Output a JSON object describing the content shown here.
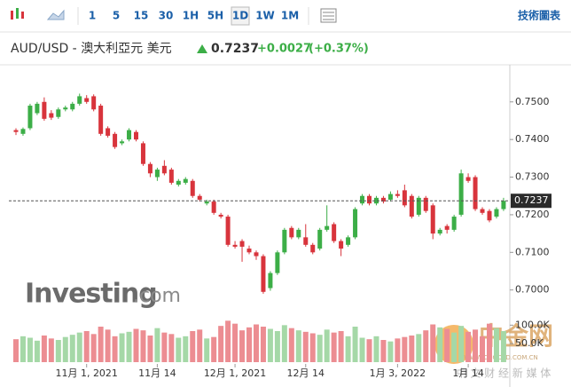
{
  "toolbar": {
    "timeframes": [
      "1",
      "5",
      "15",
      "30",
      "1H",
      "5H",
      "1D",
      "1W",
      "1M"
    ],
    "active": "1D",
    "link": "技術圖表"
  },
  "header": {
    "pair": "AUD/USD - 澳大利亞元 美元",
    "change": "+0.0027",
    "change_pct": "(+0.37%)"
  },
  "watermark": {
    "brand": "Investing",
    "suffix": ".com",
    "site": "中金网",
    "site_url": "WWW.CNGOLD.COM.CN",
    "site_slogan": "中 文 财 经 新 媒 体"
  },
  "chart_data": {
    "type": "candlestick",
    "categories": [
      null,
      null,
      null,
      null,
      null,
      null,
      null,
      null,
      null,
      null,
      "11月 1, 2021",
      null,
      null,
      null,
      null,
      null,
      null,
      null,
      null,
      null,
      "11月 14",
      null,
      null,
      null,
      null,
      null,
      null,
      null,
      null,
      null,
      null,
      "12月 1, 2021",
      null,
      null,
      null,
      null,
      null,
      null,
      null,
      null,
      null,
      "12月 14",
      null,
      null,
      null,
      null,
      null,
      null,
      null,
      null,
      null,
      null,
      null,
      null,
      "1月 3, 2022",
      null,
      null,
      null,
      null,
      null,
      null,
      null,
      null,
      null,
      "1月 14",
      null,
      null,
      null,
      null,
      null
    ],
    "candles": [
      [
        0.7425,
        0.743,
        0.7412,
        0.742
      ],
      [
        0.7415,
        0.7432,
        0.741,
        0.7428
      ],
      [
        0.743,
        0.7495,
        0.7425,
        0.749
      ],
      [
        0.747,
        0.75,
        0.7465,
        0.7495
      ],
      [
        0.75,
        0.7512,
        0.745,
        0.7455
      ],
      [
        0.747,
        0.7478,
        0.7452,
        0.7458
      ],
      [
        0.746,
        0.7485,
        0.7455,
        0.748
      ],
      [
        0.748,
        0.749,
        0.7475,
        0.7485
      ],
      [
        0.748,
        0.75,
        0.7475,
        0.7495
      ],
      [
        0.7495,
        0.7522,
        0.749,
        0.7515
      ],
      [
        0.751,
        0.7518,
        0.7495,
        0.75
      ],
      [
        0.7515,
        0.752,
        0.7475,
        0.748
      ],
      [
        0.749,
        0.7495,
        0.741,
        0.7415
      ],
      [
        0.743,
        0.7435,
        0.7405,
        0.741
      ],
      [
        0.7415,
        0.742,
        0.7375,
        0.738
      ],
      [
        0.739,
        0.74,
        0.7385,
        0.7395
      ],
      [
        0.74,
        0.743,
        0.7395,
        0.7425
      ],
      [
        0.742,
        0.7425,
        0.7395,
        0.74
      ],
      [
        0.739,
        0.7395,
        0.733,
        0.7335
      ],
      [
        0.7335,
        0.734,
        0.73,
        0.731
      ],
      [
        0.73,
        0.7325,
        0.729,
        0.732
      ],
      [
        0.733,
        0.7345,
        0.7305,
        0.731
      ],
      [
        0.732,
        0.7325,
        0.728,
        0.7285
      ],
      [
        0.728,
        0.7295,
        0.7275,
        0.729
      ],
      [
        0.7285,
        0.73,
        0.728,
        0.7295
      ],
      [
        0.729,
        0.7295,
        0.7245,
        0.725
      ],
      [
        0.725,
        0.7255,
        0.7235,
        0.724
      ],
      [
        0.723,
        0.724,
        0.7225,
        0.7235
      ],
      [
        0.7235,
        0.724,
        0.72,
        0.7205
      ],
      [
        0.72,
        0.7205,
        0.719,
        0.7195
      ],
      [
        0.7195,
        0.72,
        0.7115,
        0.712
      ],
      [
        0.712,
        0.713,
        0.711,
        0.7115
      ],
      [
        0.713,
        0.7135,
        0.7075,
        0.7115
      ],
      [
        0.711,
        0.7118,
        0.7095,
        0.71
      ],
      [
        0.71,
        0.7105,
        0.708,
        0.709
      ],
      [
        0.709,
        0.7095,
        0.699,
        0.6995
      ],
      [
        0.7005,
        0.705,
        0.6998,
        0.7045
      ],
      [
        0.7045,
        0.7105,
        0.704,
        0.71
      ],
      [
        0.71,
        0.7165,
        0.7095,
        0.716
      ],
      [
        0.7165,
        0.717,
        0.7135,
        0.714
      ],
      [
        0.714,
        0.7165,
        0.7135,
        0.716
      ],
      [
        0.714,
        0.7175,
        0.7115,
        0.712
      ],
      [
        0.712,
        0.7125,
        0.7095,
        0.71
      ],
      [
        0.711,
        0.7165,
        0.7105,
        0.716
      ],
      [
        0.716,
        0.7225,
        0.7155,
        0.717
      ],
      [
        0.7175,
        0.718,
        0.7125,
        0.713
      ],
      [
        0.713,
        0.7135,
        0.709,
        0.711
      ],
      [
        0.712,
        0.7145,
        0.7115,
        0.714
      ],
      [
        0.714,
        0.722,
        0.7135,
        0.7215
      ],
      [
        0.723,
        0.7255,
        0.7225,
        0.725
      ],
      [
        0.725,
        0.7255,
        0.7225,
        0.723
      ],
      [
        0.723,
        0.725,
        0.7225,
        0.7245
      ],
      [
        0.7245,
        0.725,
        0.723,
        0.7235
      ],
      [
        0.724,
        0.7262,
        0.7235,
        0.7255
      ],
      [
        0.7255,
        0.7265,
        0.7245,
        0.725
      ],
      [
        0.7265,
        0.728,
        0.722,
        0.7225
      ],
      [
        0.725,
        0.7255,
        0.719,
        0.7195
      ],
      [
        0.72,
        0.725,
        0.7195,
        0.7245
      ],
      [
        0.7245,
        0.725,
        0.7205,
        0.721
      ],
      [
        0.7225,
        0.723,
        0.7135,
        0.715
      ],
      [
        0.715,
        0.7165,
        0.7145,
        0.716
      ],
      [
        0.717,
        0.7175,
        0.715,
        0.716
      ],
      [
        0.716,
        0.72,
        0.7155,
        0.7195
      ],
      [
        0.72,
        0.732,
        0.7195,
        0.731
      ],
      [
        0.73,
        0.731,
        0.7285,
        0.729
      ],
      [
        0.73,
        0.7305,
        0.721,
        0.7215
      ],
      [
        0.7215,
        0.722,
        0.72,
        0.7205
      ],
      [
        0.721,
        0.7215,
        0.718,
        0.7185
      ],
      [
        0.7195,
        0.722,
        0.719,
        0.7215
      ],
      [
        0.7215,
        0.7245,
        0.721,
        0.7237
      ]
    ],
    "volume": [
      62000,
      70000,
      66000,
      58000,
      72000,
      64000,
      60000,
      68000,
      74000,
      80000,
      84000,
      76000,
      96000,
      88000,
      70000,
      78000,
      82000,
      90000,
      86000,
      72000,
      92000,
      80000,
      76000,
      66000,
      70000,
      84000,
      88000,
      64000,
      68000,
      98000,
      112000,
      104000,
      86000,
      94000,
      102000,
      96000,
      90000,
      84000,
      100000,
      92000,
      86000,
      82000,
      78000,
      74000,
      88000,
      80000,
      84000,
      70000,
      96000,
      66000,
      62000,
      70000,
      60000,
      56000,
      64000,
      68000,
      72000,
      76000,
      86000,
      102000,
      94000,
      90000,
      80000,
      98000,
      82000,
      88000,
      70000,
      104000,
      92000,
      84000
    ],
    "ylim": [
      0.6945,
      0.7575
    ],
    "yticks": [
      {
        "value": 0.75,
        "label": "0.7500"
      },
      {
        "value": 0.74,
        "label": "0.7400"
      },
      {
        "value": 0.73,
        "label": "0.7300"
      },
      {
        "value": 0.72,
        "label": "0.7200"
      },
      {
        "value": 0.71,
        "label": "0.7100"
      },
      {
        "value": 0.7,
        "label": "0.7000"
      }
    ],
    "vlim": [
      0,
      120000
    ],
    "vticks": [
      {
        "value": 100000,
        "label": "100.0K"
      },
      {
        "value": 50000,
        "label": "50.0K"
      }
    ],
    "last": 0.7237,
    "up_color": "#3cae47",
    "down_color": "#d8343c",
    "volume_up_color": "#a5d8a7",
    "volume_down_color": "#ec8d92"
  }
}
